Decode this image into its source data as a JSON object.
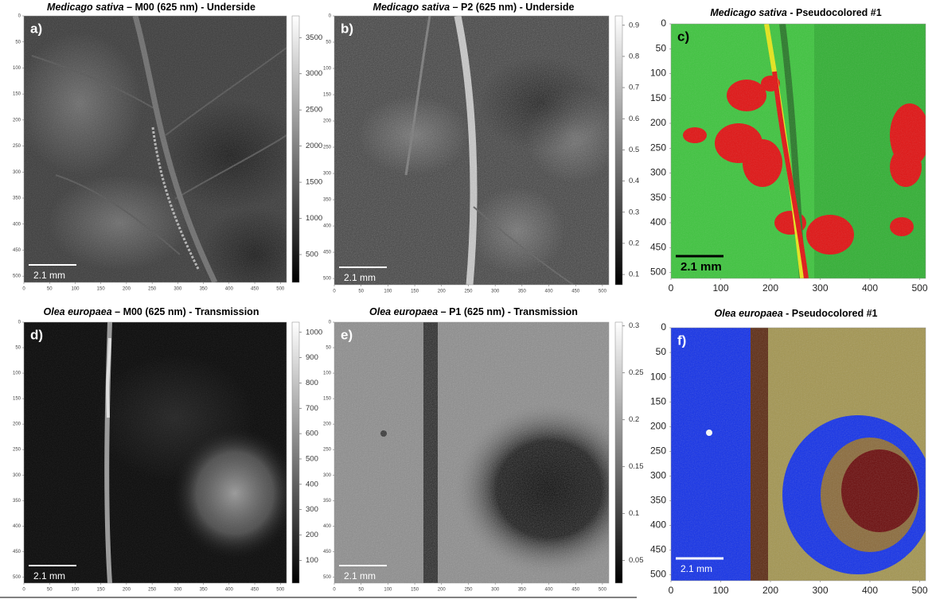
{
  "panels": [
    {
      "title": {
        "species": "Medicago sativa",
        "rest": " – M00 (625 nm) - Underside"
      },
      "label": "a)",
      "scale_bar": "2.1 mm",
      "xlim": [
        0,
        512
      ],
      "ylim": [
        0,
        512
      ],
      "xticks": [
        0,
        50,
        100,
        150,
        200,
        250,
        300,
        350,
        400,
        450,
        500
      ],
      "yticks": [
        0,
        50,
        100,
        150,
        200,
        250,
        300,
        350,
        400,
        450,
        500
      ],
      "colorbar": {
        "clim": [
          115,
          3800
        ],
        "ticks": [
          500,
          1000,
          1500,
          2000,
          2500,
          3000,
          3500
        ]
      }
    },
    {
      "title": {
        "species": "Medicago sativa",
        "rest": " – P2 (625 nm) - Underside"
      },
      "label": "b)",
      "scale_bar": "2.1 mm",
      "xlim": [
        0,
        512
      ],
      "ylim": [
        0,
        512
      ],
      "xticks": [
        0,
        50,
        100,
        150,
        200,
        250,
        300,
        350,
        400,
        450,
        500
      ],
      "yticks": [
        0,
        50,
        100,
        150,
        200,
        250,
        300,
        350,
        400,
        450,
        500
      ],
      "colorbar": {
        "clim": [
          0.067,
          0.93
        ],
        "ticks": [
          0.1,
          0.2,
          0.3,
          0.4,
          0.5,
          0.6,
          0.7,
          0.8,
          0.9
        ]
      }
    },
    {
      "title": {
        "species": "Medicago sativa",
        "rest": " - Pseudocolored #1"
      },
      "label": "c)",
      "scale_bar": "2.1 mm",
      "xlim": [
        0,
        512
      ],
      "ylim": [
        0,
        512
      ],
      "xticks": [
        0,
        100,
        200,
        300,
        400,
        500
      ],
      "yticks": [
        0,
        50,
        100,
        150,
        200,
        250,
        300,
        350,
        400,
        450,
        500
      ]
    },
    {
      "title": {
        "species": "Olea europaea",
        "rest": " – M00 (625 nm) - Transmission"
      },
      "label": "d)",
      "scale_bar": "2.1 mm",
      "xlim": [
        0,
        512
      ],
      "ylim": [
        0,
        512
      ],
      "xticks": [
        0,
        50,
        100,
        150,
        200,
        250,
        300,
        350,
        400,
        450,
        500
      ],
      "yticks": [
        0,
        50,
        100,
        150,
        200,
        250,
        300,
        350,
        400,
        450,
        500
      ],
      "colorbar": {
        "clim": [
          10,
          1040
        ],
        "ticks": [
          100,
          200,
          300,
          400,
          500,
          600,
          700,
          800,
          900,
          1000
        ]
      }
    },
    {
      "title": {
        "species": "Olea europaea",
        "rest": " – P1 (625 nm) - Transmission"
      },
      "label": "e)",
      "scale_bar": "2.1 mm",
      "xlim": [
        0,
        512
      ],
      "ylim": [
        0,
        512
      ],
      "xticks": [
        0,
        50,
        100,
        150,
        200,
        250,
        300,
        350,
        400,
        450,
        500
      ],
      "yticks": [
        0,
        50,
        100,
        150,
        200,
        250,
        300,
        350,
        400,
        450,
        500
      ],
      "colorbar": {
        "clim": [
          0.026,
          0.304
        ],
        "ticks": [
          0.05,
          0.1,
          0.15,
          0.2,
          0.25,
          0.3
        ]
      }
    },
    {
      "title": {
        "species": "Olea europaea",
        "rest": " - Pseudocolored #1"
      },
      "label": "f)",
      "scale_bar": "2.1 mm",
      "xlim": [
        0,
        512
      ],
      "ylim": [
        0,
        512
      ],
      "xticks": [
        0,
        100,
        200,
        300,
        400,
        500
      ],
      "yticks": [
        0,
        50,
        100,
        150,
        200,
        250,
        300,
        350,
        400,
        450,
        500
      ]
    }
  ]
}
